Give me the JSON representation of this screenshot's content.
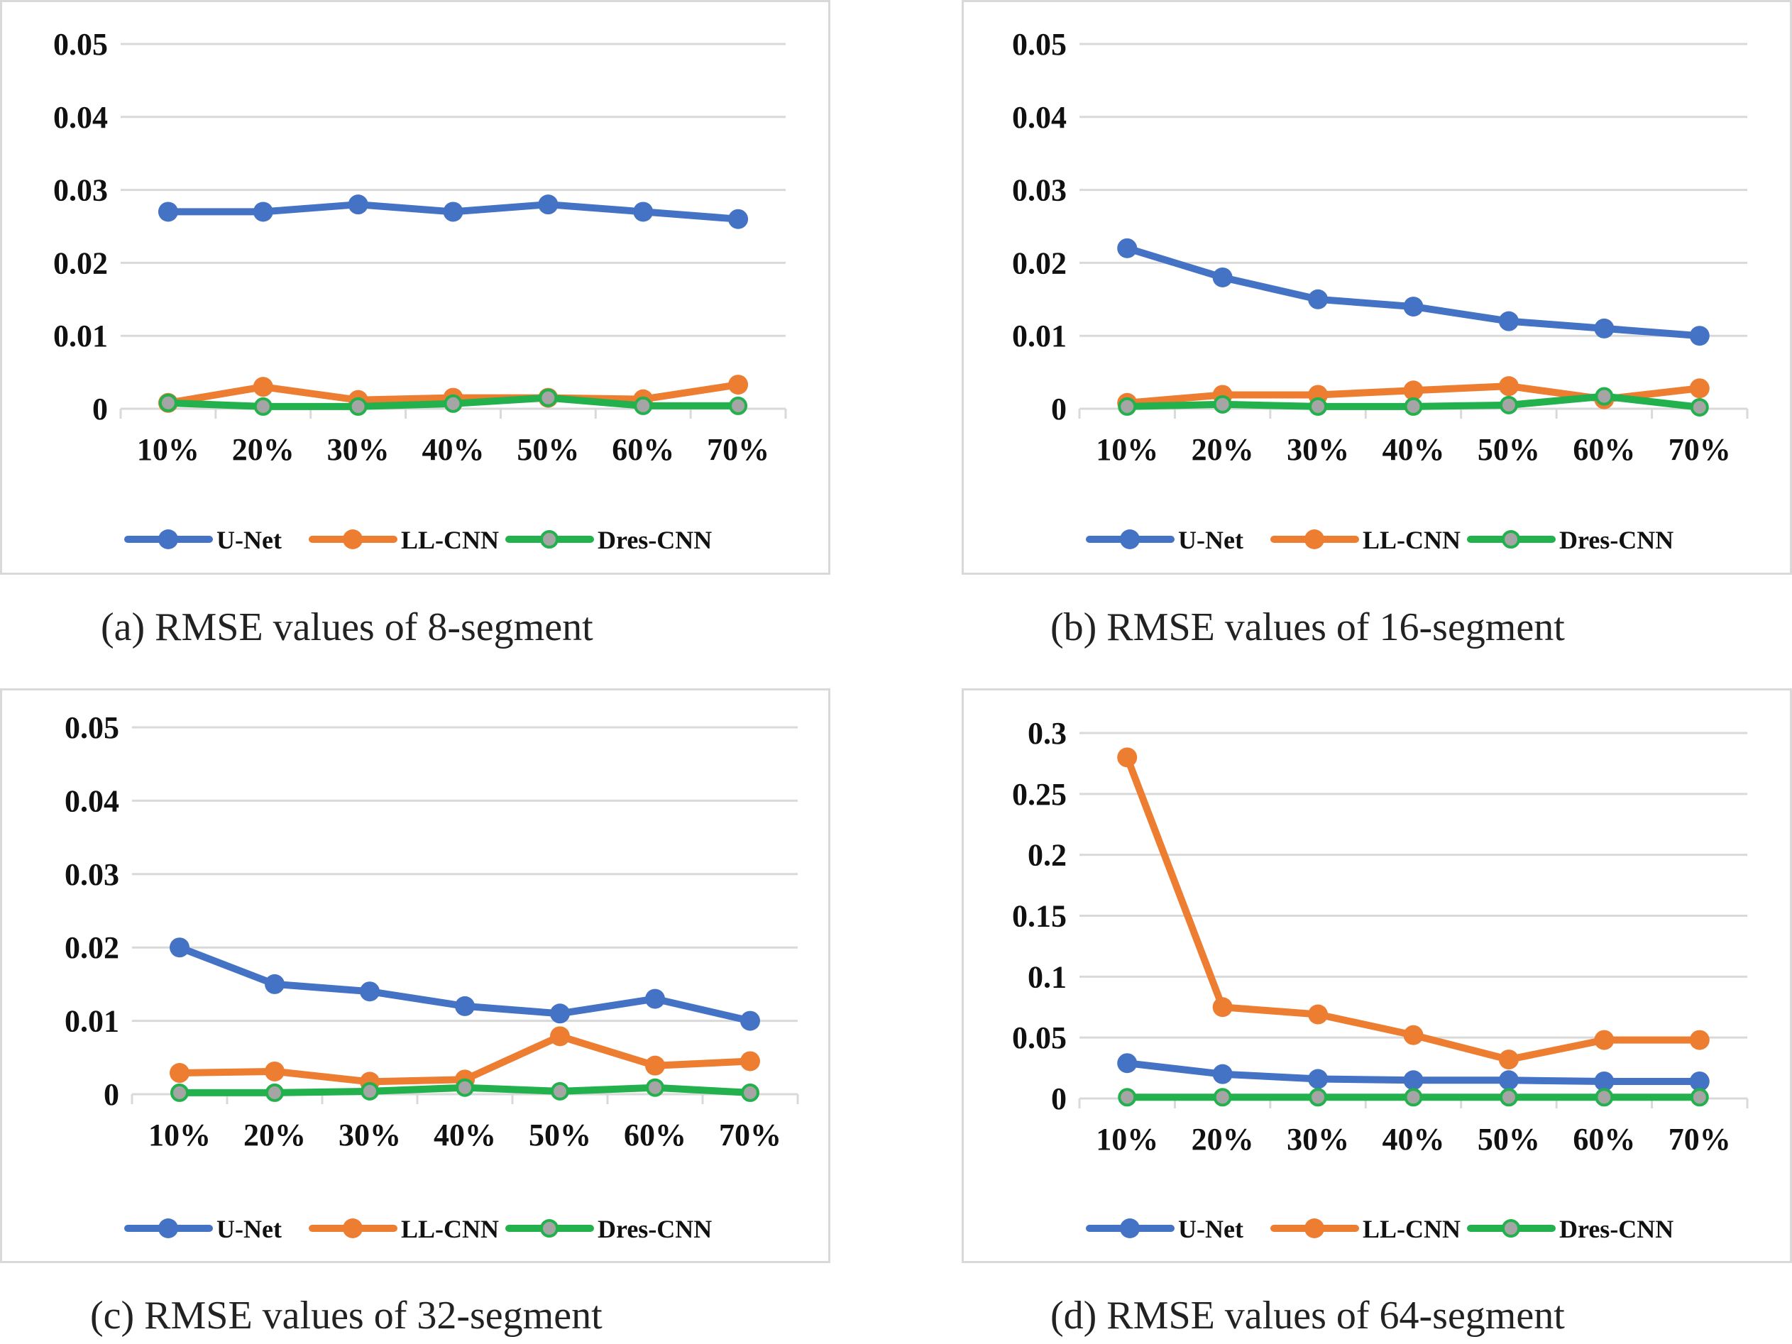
{
  "chart_data": [
    {
      "type": "line",
      "title": "",
      "caption": "(a) RMSE values of 8-segment",
      "xlabel": "",
      "ylabel": "",
      "categories": [
        "10%",
        "20%",
        "30%",
        "40%",
        "50%",
        "60%",
        "70%"
      ],
      "ylim": [
        0,
        0.05
      ],
      "yticks": [
        0,
        0.01,
        0.02,
        0.03,
        0.04,
        0.05
      ],
      "ytick_labels": [
        "0",
        "0.01",
        "0.02",
        "0.03",
        "0.04",
        "0.05"
      ],
      "grid": true,
      "legend": "bottom",
      "series": [
        {
          "name": "U-Net",
          "color": "#4472c4",
          "values": [
            0.027,
            0.027,
            0.028,
            0.027,
            0.028,
            0.027,
            0.026
          ]
        },
        {
          "name": "LL-CNN",
          "color": "#ed7d31",
          "values": [
            0.0008,
            0.003,
            0.0012,
            0.0015,
            0.0015,
            0.0013,
            0.0033
          ]
        },
        {
          "name": "Dres-CNN",
          "color": "#22b14c",
          "marker_fill": "#a5a5a5",
          "values": [
            0.0008,
            0.0003,
            0.0003,
            0.0007,
            0.0015,
            0.0004,
            0.0004
          ]
        }
      ]
    },
    {
      "type": "line",
      "title": "",
      "caption": "(b) RMSE values of 16-segment",
      "xlabel": "",
      "ylabel": "",
      "categories": [
        "10%",
        "20%",
        "30%",
        "40%",
        "50%",
        "60%",
        "70%"
      ],
      "ylim": [
        0,
        0.05
      ],
      "yticks": [
        0,
        0.01,
        0.02,
        0.03,
        0.04,
        0.05
      ],
      "ytick_labels": [
        "0",
        "0.01",
        "0.02",
        "0.03",
        "0.04",
        "0.05"
      ],
      "grid": true,
      "legend": "bottom",
      "series": [
        {
          "name": "U-Net",
          "color": "#4472c4",
          "values": [
            0.022,
            0.018,
            0.015,
            0.014,
            0.012,
            0.011,
            0.01
          ]
        },
        {
          "name": "LL-CNN",
          "color": "#ed7d31",
          "values": [
            0.0008,
            0.0019,
            0.0019,
            0.0025,
            0.0031,
            0.0013,
            0.0028
          ]
        },
        {
          "name": "Dres-CNN",
          "color": "#22b14c",
          "marker_fill": "#a5a5a5",
          "values": [
            0.0003,
            0.0006,
            0.0003,
            0.0003,
            0.0005,
            0.0017,
            0.0002
          ]
        }
      ]
    },
    {
      "type": "line",
      "title": "",
      "caption": "(c) RMSE values of 32-segment",
      "xlabel": "",
      "ylabel": "",
      "categories": [
        "10%",
        "20%",
        "30%",
        "40%",
        "50%",
        "60%",
        "70%"
      ],
      "ylim": [
        0,
        0.05
      ],
      "yticks": [
        0,
        0.01,
        0.02,
        0.03,
        0.04,
        0.05
      ],
      "ytick_labels": [
        "0",
        "0.01",
        "0.02",
        "0.03",
        "0.04",
        "0.05"
      ],
      "grid": true,
      "legend": "bottom",
      "series": [
        {
          "name": "U-Net",
          "color": "#4472c4",
          "values": [
            0.02,
            0.015,
            0.014,
            0.012,
            0.011,
            0.013,
            0.01
          ]
        },
        {
          "name": "LL-CNN",
          "color": "#ed7d31",
          "values": [
            0.0029,
            0.0031,
            0.0017,
            0.002,
            0.0079,
            0.0039,
            0.0045
          ]
        },
        {
          "name": "Dres-CNN",
          "color": "#22b14c",
          "marker_fill": "#a5a5a5",
          "values": [
            0.0002,
            0.0002,
            0.0004,
            0.0009,
            0.0004,
            0.0009,
            0.0002
          ]
        }
      ]
    },
    {
      "type": "line",
      "title": "",
      "caption": "(d) RMSE values of 64-segment",
      "xlabel": "",
      "ylabel": "",
      "categories": [
        "10%",
        "20%",
        "30%",
        "40%",
        "50%",
        "60%",
        "70%"
      ],
      "ylim": [
        0,
        0.3
      ],
      "yticks": [
        0,
        0.05,
        0.1,
        0.15,
        0.2,
        0.25,
        0.3
      ],
      "ytick_labels": [
        "0",
        "0.05",
        "0.1",
        "0.15",
        "0.2",
        "0.25",
        "0.3"
      ],
      "grid": true,
      "legend": "bottom",
      "series": [
        {
          "name": "U-Net",
          "color": "#4472c4",
          "values": [
            0.029,
            0.02,
            0.016,
            0.015,
            0.015,
            0.014,
            0.014
          ]
        },
        {
          "name": "LL-CNN",
          "color": "#ed7d31",
          "values": [
            0.28,
            0.075,
            0.069,
            0.052,
            0.032,
            0.048,
            0.048
          ]
        },
        {
          "name": "Dres-CNN",
          "color": "#22b14c",
          "marker_fill": "#a5a5a5",
          "values": [
            0.001,
            0.001,
            0.001,
            0.001,
            0.001,
            0.001,
            0.001
          ]
        }
      ]
    }
  ]
}
